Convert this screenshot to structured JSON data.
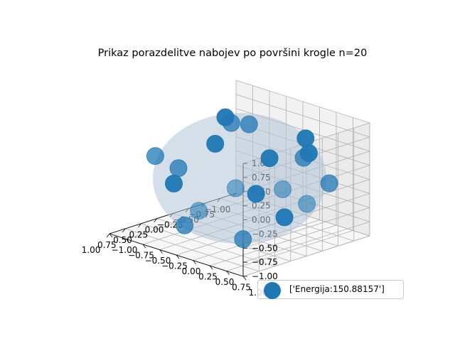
{
  "chart_data": {
    "type": "scatter",
    "projection": "3d",
    "title": "Prikaz porazdelitve nabojev po površini krogle n=20",
    "x_ticks": [
      "−1.00",
      "−0.75",
      "−0.50",
      "−0.25",
      "0.00",
      "0.25",
      "0.50",
      "0.75",
      "1.00"
    ],
    "y_ticks": [
      "−1.00",
      "−0.75",
      "−0.50",
      "−0.25",
      "0.00",
      "0.25",
      "0.50",
      "0.75",
      "1.00"
    ],
    "z_ticks": [
      "−1.00",
      "−0.75",
      "−0.50",
      "−0.25",
      "0.00",
      "0.25",
      "0.50",
      "0.75",
      "1.00"
    ],
    "xlim": [
      -1,
      1
    ],
    "ylim": [
      -1,
      1
    ],
    "zlim": [
      -1,
      1
    ],
    "grid": true,
    "sphere": {
      "radius": 1,
      "color": "#b0c4d8"
    },
    "legend": {
      "label": "['Energija:150.88157']",
      "placement": "lower-right"
    },
    "marker_color": "#1f77b4",
    "points": [
      [
        -0.07,
        0.08,
        0.99
      ],
      [
        0.04,
        -0.09,
        0.99
      ],
      [
        0.88,
        -0.11,
        0.46
      ],
      [
        0.72,
        0.62,
        0.31
      ],
      [
        0.95,
        0.27,
        -0.15
      ],
      [
        0.55,
        -0.78,
        0.31
      ],
      [
        0.42,
        0.45,
        -0.79
      ],
      [
        0.6,
        -0.28,
        -0.75
      ],
      [
        -0.22,
        0.78,
        0.59
      ],
      [
        -0.8,
        0.26,
        0.54
      ],
      [
        -0.5,
        -0.85,
        0.13
      ],
      [
        -0.05,
        0.99,
        -0.11
      ],
      [
        0.11,
        -0.91,
        -0.4
      ],
      [
        -0.53,
        0.19,
        -0.83
      ],
      [
        -0.66,
        -0.37,
        -0.66
      ],
      [
        -0.91,
        -0.4,
        -0.11
      ],
      [
        -0.7,
        0.72,
        -0.07
      ],
      [
        0.28,
        0.93,
        0.25
      ],
      [
        -0.17,
        -0.38,
        0.91
      ],
      [
        -0.98,
        0.14,
        0.16
      ]
    ]
  }
}
